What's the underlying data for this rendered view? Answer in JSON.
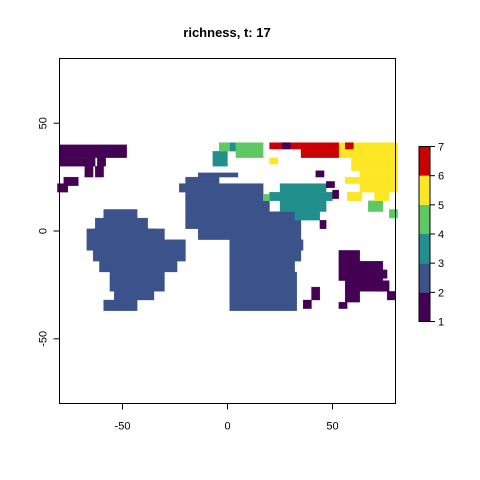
{
  "chart_data": {
    "type": "heatmap",
    "title": "richness, t: 17",
    "xlabel": "",
    "ylabel": "",
    "xlim": [
      -80,
      80
    ],
    "ylim": [
      -80,
      80
    ],
    "x_ticks": [
      -50,
      0,
      50
    ],
    "y_ticks": [
      -50,
      0,
      50
    ],
    "cell_size": 3.2,
    "grid": false,
    "legend": {
      "placement": "right",
      "ticks": [
        1,
        2,
        3,
        4,
        5,
        6,
        7
      ],
      "colors": [
        "#440154",
        "#3b528b",
        "#21908c",
        "#5ec962",
        "#fde725",
        "#cc0000"
      ]
    },
    "values": [
      {
        "x0": -80,
        "x1": -48,
        "y0": 34,
        "y1": 40,
        "value": 1
      },
      {
        "x0": -80,
        "x1": -63,
        "y0": 30,
        "y1": 34,
        "value": 1
      },
      {
        "x0": -68,
        "x1": -64,
        "y0": 25,
        "y1": 30,
        "value": 1
      },
      {
        "x0": -62,
        "x1": -58,
        "y0": 30,
        "y1": 34,
        "value": 1
      },
      {
        "x0": -63,
        "x1": -59,
        "y0": 25,
        "y1": 30,
        "value": 1
      },
      {
        "x0": -78,
        "x1": -71,
        "y0": 21,
        "y1": 25,
        "value": 1
      },
      {
        "x0": -81,
        "x1": -76,
        "y0": 18,
        "y1": 22,
        "value": 1
      },
      {
        "x0": -59,
        "x1": -43,
        "y0": 6,
        "y1": 10,
        "value": 2
      },
      {
        "x0": -63,
        "x1": -38,
        "y0": 1,
        "y1": 6,
        "value": 2
      },
      {
        "x0": -64,
        "x1": -34,
        "y0": -4,
        "y1": 1,
        "value": 2
      },
      {
        "x0": -67,
        "x1": -30,
        "y0": -9,
        "y1": 1,
        "value": 2
      },
      {
        "x0": -64,
        "x1": -20,
        "y0": -14,
        "y1": -4,
        "value": 2
      },
      {
        "x0": -61,
        "x1": -24,
        "y0": -19,
        "y1": -9,
        "value": 2
      },
      {
        "x0": -56,
        "x1": -30,
        "y0": -28,
        "y1": -14,
        "value": 2
      },
      {
        "x0": -54,
        "x1": -35,
        "y0": -32,
        "y1": -28,
        "value": 2
      },
      {
        "x0": -59,
        "x1": -43,
        "y0": -37,
        "y1": -32,
        "value": 2
      },
      {
        "x0": -20,
        "x1": -4,
        "y0": 22,
        "y1": 25,
        "value": 2
      },
      {
        "x0": -14,
        "x1": 5,
        "y0": 25,
        "y1": 27,
        "value": 2
      },
      {
        "x0": -23,
        "x1": 17,
        "y0": 18,
        "y1": 22,
        "value": 2
      },
      {
        "x0": -20,
        "x1": 17,
        "y0": 14,
        "y1": 18,
        "value": 2
      },
      {
        "x0": -20,
        "x1": 20,
        "y0": 9,
        "y1": 14,
        "value": 2
      },
      {
        "x0": -20,
        "x1": 35,
        "y0": 1,
        "y1": 9,
        "value": 2
      },
      {
        "x0": -14,
        "x1": 35,
        "y0": -4,
        "y1": 1,
        "value": 2
      },
      {
        "x0": 1,
        "x1": 36,
        "y0": -9,
        "y1": -4,
        "value": 2
      },
      {
        "x0": 1,
        "x1": 35,
        "y0": -14,
        "y1": -9,
        "value": 2
      },
      {
        "x0": 1,
        "x1": 32,
        "y0": -19,
        "y1": -14,
        "value": 2
      },
      {
        "x0": 1,
        "x1": 33,
        "y0": -28,
        "y1": -19,
        "value": 2
      },
      {
        "x0": 1,
        "x1": 33,
        "y0": -37,
        "y1": -28,
        "value": 2
      },
      {
        "x0": 25,
        "x1": 47,
        "y0": 18,
        "y1": 22,
        "value": 3
      },
      {
        "x0": 20,
        "x1": 50,
        "y0": 14,
        "y1": 18,
        "value": 3
      },
      {
        "x0": 25,
        "x1": 47,
        "y0": 9,
        "y1": 14,
        "value": 3
      },
      {
        "x0": 32,
        "x1": 44,
        "y0": 5,
        "y1": 9,
        "value": 3
      },
      {
        "x0": -7,
        "x1": 0,
        "y0": 30,
        "y1": 37,
        "value": 3
      },
      {
        "x0": 1,
        "x1": 4,
        "y0": 37,
        "y1": 41,
        "value": 3
      },
      {
        "x0": -4,
        "x1": 1,
        "y0": 37,
        "y1": 41,
        "value": 4
      },
      {
        "x0": 4,
        "x1": 17,
        "y0": 34,
        "y1": 41,
        "value": 4
      },
      {
        "x0": 67,
        "x1": 74,
        "y0": 9,
        "y1": 14,
        "value": 4
      },
      {
        "x0": 77,
        "x1": 81,
        "y0": 6,
        "y1": 10,
        "value": 4
      },
      {
        "x0": 17,
        "x1": 20,
        "y0": 14,
        "y1": 17,
        "value": 4
      },
      {
        "x0": 53,
        "x1": 81,
        "y0": 34,
        "y1": 41,
        "value": 5
      },
      {
        "x0": 59,
        "x1": 81,
        "y0": 28,
        "y1": 34,
        "value": 5
      },
      {
        "x0": 63,
        "x1": 81,
        "y0": 18,
        "y1": 28,
        "value": 5
      },
      {
        "x0": 70,
        "x1": 77,
        "y0": 14,
        "y1": 18,
        "value": 5
      },
      {
        "x0": 56,
        "x1": 63,
        "y0": 22,
        "y1": 25,
        "value": 5
      },
      {
        "x0": 57,
        "x1": 64,
        "y0": 14,
        "y1": 18,
        "value": 5
      },
      {
        "x0": 20,
        "x1": 24,
        "y0": 31,
        "y1": 34,
        "value": 5
      },
      {
        "x0": 20,
        "x1": 27,
        "y0": 38,
        "y1": 41,
        "value": 6
      },
      {
        "x0": 35,
        "x1": 53,
        "y0": 34,
        "y1": 41,
        "value": 6
      },
      {
        "x0": 26,
        "x1": 35,
        "y0": 38,
        "y1": 41,
        "value": 6
      },
      {
        "x0": 56,
        "x1": 60,
        "y0": 38,
        "y1": 41,
        "value": 6
      },
      {
        "x0": 26,
        "x1": 30,
        "y0": 38,
        "y1": 41,
        "value": 1
      },
      {
        "x0": 42,
        "x1": 46,
        "y0": 25,
        "y1": 28,
        "value": 1
      },
      {
        "x0": 47,
        "x1": 51,
        "y0": 20,
        "y1": 23,
        "value": 1
      },
      {
        "x0": 50,
        "x1": 53,
        "y0": 15,
        "y1": 19,
        "value": 1
      },
      {
        "x0": 44,
        "x1": 47,
        "y0": 1,
        "y1": 5,
        "value": 1
      },
      {
        "x0": 53,
        "x1": 63,
        "y0": -23,
        "y1": -9,
        "value": 1
      },
      {
        "x0": 56,
        "x1": 74,
        "y0": -28,
        "y1": -14,
        "value": 1
      },
      {
        "x0": 63,
        "x1": 76,
        "y0": -22,
        "y1": -18,
        "value": 1
      },
      {
        "x0": 70,
        "x1": 77,
        "y0": -28,
        "y1": -23,
        "value": 1
      },
      {
        "x0": 56,
        "x1": 63,
        "y0": -33,
        "y1": -28,
        "value": 1
      },
      {
        "x0": 53,
        "x1": 57,
        "y0": -36,
        "y1": -33,
        "value": 1
      },
      {
        "x0": 40,
        "x1": 44,
        "y0": -32,
        "y1": -26,
        "value": 1
      },
      {
        "x0": 36,
        "x1": 40,
        "y0": -36,
        "y1": -32,
        "value": 1
      },
      {
        "x0": 76,
        "x1": 80,
        "y0": -32,
        "y1": -28,
        "value": 1
      }
    ]
  }
}
